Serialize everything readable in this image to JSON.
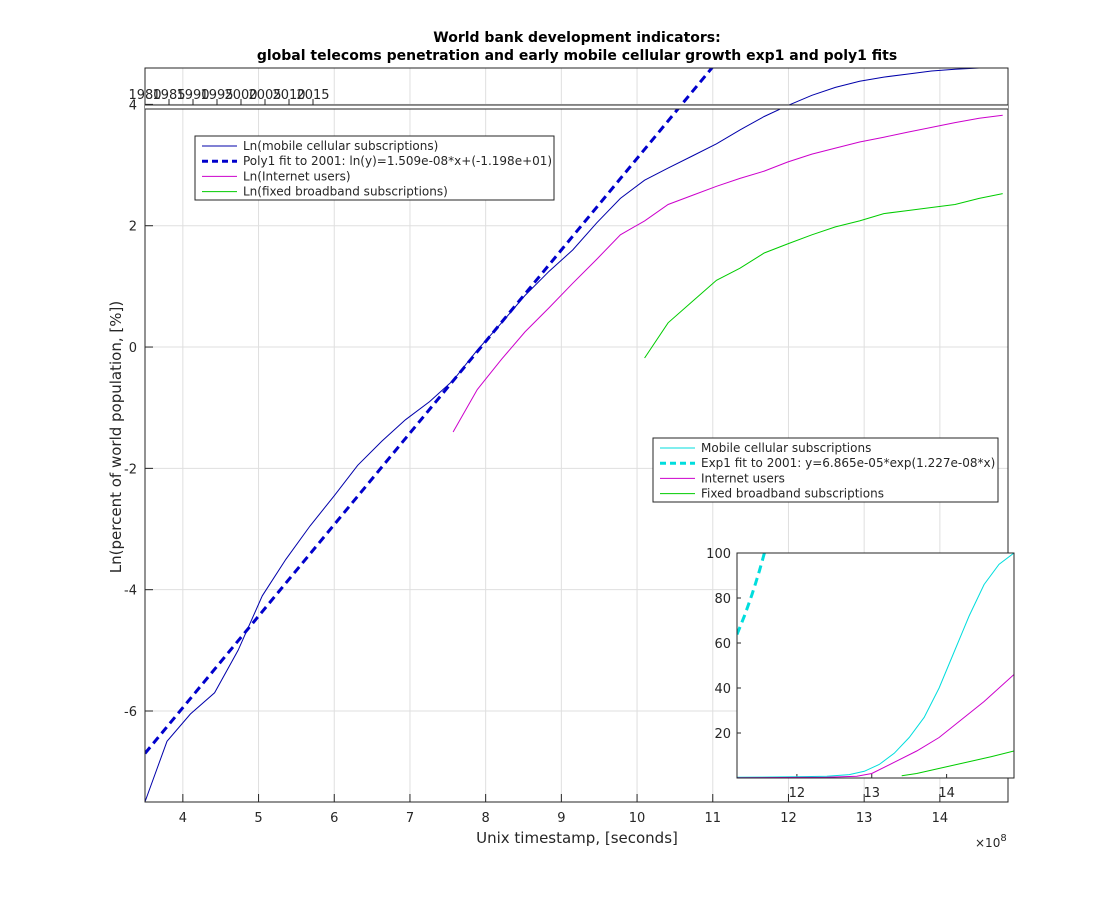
{
  "chart_data": [
    {
      "type": "line",
      "title": [
        "World bank development indicators:",
        "global telecoms penetration and early mobile cellular growth exp1 and poly1 fits"
      ],
      "xlabel": "Unix timestamp, [seconds]",
      "ylabel": "Ln(percent of world population, [%])",
      "x_exponent_label": "×10",
      "x_exponent_power": "8",
      "xlim": [
        3.5,
        14.9
      ],
      "ylim": [
        -7.5,
        4.6
      ],
      "x_ticks": [
        4,
        5,
        6,
        7,
        8,
        9,
        10,
        11,
        12,
        13,
        14
      ],
      "x_ticklabels": [
        "4",
        "5",
        "6",
        "7",
        "8",
        "9",
        "10",
        "11",
        "12",
        "13",
        "14"
      ],
      "y_ticks": [
        -6,
        -4,
        -2,
        0,
        2,
        4
      ],
      "y_ticklabels": [
        "-6",
        "-4",
        "-2",
        "0",
        "2",
        "4"
      ],
      "top_axis_ticks": [
        1980,
        1985,
        1990,
        1995,
        2000,
        2005,
        2010,
        2015
      ],
      "top_axis_ticklabels": [
        "1980",
        "1985",
        "1990",
        "1995",
        "2000",
        "2005",
        "2010",
        "2015"
      ],
      "grid": true,
      "legend_position": "top-left",
      "series": [
        {
          "name": "Ln(mobile cellular subscriptions)",
          "color": "#0000aa",
          "style": "solid",
          "x": [
            3.47,
            3.79,
            4.1,
            4.42,
            4.73,
            5.05,
            5.36,
            5.68,
            6.0,
            6.31,
            6.63,
            6.94,
            7.26,
            7.57,
            7.89,
            8.21,
            8.52,
            8.84,
            9.15,
            9.47,
            9.78,
            10.1,
            10.41,
            10.73,
            11.05,
            11.36,
            11.68,
            11.99,
            12.31,
            12.62,
            12.94,
            13.26,
            13.57,
            13.89,
            14.2,
            14.52,
            14.83
          ],
          "y": [
            -7.6,
            -6.5,
            -6.05,
            -5.7,
            -5.0,
            -4.1,
            -3.5,
            -2.95,
            -2.45,
            -1.95,
            -1.55,
            -1.2,
            -0.9,
            -0.55,
            -0.05,
            0.4,
            0.85,
            1.25,
            1.6,
            2.05,
            2.45,
            2.75,
            2.95,
            3.15,
            3.35,
            3.58,
            3.8,
            3.98,
            4.15,
            4.28,
            4.38,
            4.45,
            4.5,
            4.55,
            4.58,
            4.6,
            4.62
          ]
        },
        {
          "name": "Poly1 fit to 2001: ln(y)=1.509e-08*x+(-1.198e+01)",
          "color": "#0000cc",
          "style": "dashed",
          "slope": 1.509,
          "intercept": -11.98
        },
        {
          "name": "Ln(Internet users)",
          "color": "#cc00cc",
          "style": "solid",
          "x": [
            7.57,
            7.89,
            8.21,
            8.52,
            8.84,
            9.15,
            9.47,
            9.78,
            10.1,
            10.41,
            10.73,
            11.05,
            11.36,
            11.68,
            11.99,
            12.31,
            12.62,
            12.94,
            13.26,
            13.57,
            13.89,
            14.2,
            14.52,
            14.83
          ],
          "y": [
            -1.4,
            -0.7,
            -0.2,
            0.25,
            0.65,
            1.05,
            1.45,
            1.85,
            2.08,
            2.35,
            2.5,
            2.65,
            2.78,
            2.9,
            3.05,
            3.18,
            3.28,
            3.38,
            3.46,
            3.54,
            3.62,
            3.7,
            3.77,
            3.82
          ]
        },
        {
          "name": "Ln(fixed broadband subscriptions)",
          "color": "#00cc00",
          "style": "solid",
          "x": [
            10.1,
            10.41,
            10.73,
            11.05,
            11.36,
            11.68,
            11.99,
            12.31,
            12.62,
            12.94,
            13.26,
            13.57,
            13.89,
            14.2,
            14.52,
            14.83
          ],
          "y": [
            -0.18,
            0.4,
            0.75,
            1.1,
            1.3,
            1.55,
            1.7,
            1.85,
            1.98,
            2.08,
            2.2,
            2.25,
            2.3,
            2.35,
            2.45,
            2.53
          ]
        }
      ]
    },
    {
      "type": "line",
      "xlim": [
        11.2,
        14.9
      ],
      "ylim": [
        0,
        100
      ],
      "x_ticks": [
        12,
        13,
        14
      ],
      "x_ticklabels": [
        "12",
        "13",
        "14"
      ],
      "y_ticks": [
        20,
        40,
        60,
        80,
        100
      ],
      "y_ticklabels": [
        "20",
        "40",
        "60",
        "80",
        "100"
      ],
      "legend_position": "middle-right",
      "series": [
        {
          "name": "Mobile cellular subscriptions",
          "color": "#00dddd",
          "style": "solid",
          "x": [
            11.2,
            11.5,
            11.8,
            12.1,
            12.4,
            12.7,
            12.9,
            13.1,
            13.3,
            13.5,
            13.7,
            13.9,
            14.1,
            14.3,
            14.5,
            14.7,
            14.9
          ],
          "y": [
            0.3,
            0.4,
            0.5,
            0.6,
            0.8,
            1.5,
            3,
            6,
            11,
            18,
            27,
            40,
            56,
            72,
            86,
            95,
            100
          ]
        },
        {
          "name": "Exp1 fit to 2001: y=6.865e-05*exp(1.227e-08*x)",
          "color": "#00dddd",
          "style": "dashed",
          "a": 6.865e-05,
          "b": 1.227
        },
        {
          "name": "Internet users",
          "color": "#cc00cc",
          "style": "solid",
          "x": [
            11.2,
            11.8,
            12.4,
            12.8,
            13.0,
            13.3,
            13.6,
            13.9,
            14.2,
            14.5,
            14.9
          ],
          "y": [
            0.1,
            0.2,
            0.3,
            0.8,
            2,
            7,
            12,
            18,
            26,
            34,
            46
          ]
        },
        {
          "name": "Fixed broadband subscriptions",
          "color": "#00cc00",
          "style": "solid",
          "x": [
            13.4,
            13.6,
            13.8,
            14.0,
            14.2,
            14.4,
            14.6,
            14.9
          ],
          "y": [
            1,
            2,
            3.5,
            5,
            6.5,
            8,
            9.5,
            12
          ]
        }
      ]
    }
  ]
}
